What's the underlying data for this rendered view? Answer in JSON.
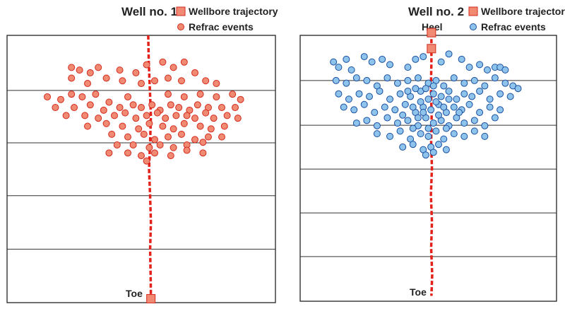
{
  "chart_data": [
    {
      "type": "scatter",
      "title": "Well no. 1",
      "legend": {
        "trajectory": "Wellbore trajectory",
        "events": "Refrac events",
        "placement": "top"
      },
      "labels": {
        "toe": "Toe"
      },
      "xlim": [
        0,
        100
      ],
      "ylim": [
        0,
        100
      ],
      "grid": true,
      "colors": {
        "fill": "#f08a72",
        "stroke": "#d42a1e",
        "trajectory": "#e3231b"
      },
      "trajectory": [
        [
          52.6,
          0
        ],
        [
          52.8,
          10
        ],
        [
          53.2,
          20
        ],
        [
          53.6,
          30
        ],
        [
          53.3,
          40
        ],
        [
          52.9,
          50
        ],
        [
          53.3,
          60
        ],
        [
          53.6,
          70
        ],
        [
          53.3,
          80
        ],
        [
          53.5,
          90
        ],
        [
          53.6,
          98
        ]
      ],
      "events": [
        [
          15,
          23
        ],
        [
          20,
          24
        ],
        [
          24,
          22
        ],
        [
          28,
          23
        ],
        [
          33,
          22
        ],
        [
          38,
          25
        ],
        [
          45,
          23
        ],
        [
          60,
          22
        ],
        [
          66,
          23
        ],
        [
          72,
          22
        ],
        [
          78,
          23
        ],
        [
          84,
          22
        ],
        [
          87,
          24
        ],
        [
          18,
          27
        ],
        [
          25,
          27
        ],
        [
          31,
          26
        ],
        [
          36,
          28
        ],
        [
          42,
          27
        ],
        [
          47,
          26
        ],
        [
          50,
          27
        ],
        [
          54,
          26
        ],
        [
          57,
          28
        ],
        [
          61,
          26
        ],
        [
          64,
          27
        ],
        [
          68,
          28
        ],
        [
          71,
          26
        ],
        [
          75,
          27
        ],
        [
          80,
          27
        ],
        [
          85,
          27
        ],
        [
          22,
          30
        ],
        [
          29,
          30
        ],
        [
          34,
          31
        ],
        [
          40,
          30
        ],
        [
          44,
          29
        ],
        [
          48,
          31
        ],
        [
          52,
          30
        ],
        [
          56,
          29
        ],
        [
          59,
          31
        ],
        [
          63,
          30
        ],
        [
          67,
          30
        ],
        [
          70,
          31
        ],
        [
          74,
          29
        ],
        [
          77,
          31
        ],
        [
          82,
          30
        ],
        [
          86,
          31
        ],
        [
          30,
          34
        ],
        [
          37,
          33
        ],
        [
          43,
          34
        ],
        [
          49,
          35
        ],
        [
          53,
          33
        ],
        [
          58,
          34
        ],
        [
          62,
          35
        ],
        [
          66,
          33
        ],
        [
          72,
          34
        ],
        [
          76,
          35
        ],
        [
          81,
          34
        ],
        [
          39,
          37
        ],
        [
          45,
          38
        ],
        [
          51,
          37
        ],
        [
          55,
          39
        ],
        [
          60,
          38
        ],
        [
          65,
          37
        ],
        [
          70,
          39
        ],
        [
          75,
          38
        ],
        [
          80,
          38
        ],
        [
          41,
          41
        ],
        [
          47,
          41
        ],
        [
          53,
          42
        ],
        [
          57,
          41
        ],
        [
          62,
          42
        ],
        [
          67,
          41
        ],
        [
          73,
          40
        ],
        [
          38,
          44
        ],
        [
          45,
          44
        ],
        [
          50,
          45
        ],
        [
          55,
          44
        ],
        [
          61,
          45
        ],
        [
          67,
          43
        ],
        [
          73,
          44
        ],
        [
          52,
          47
        ],
        [
          24,
          12
        ],
        [
          27,
          13
        ],
        [
          31,
          14
        ],
        [
          34,
          12
        ],
        [
          42,
          13
        ],
        [
          48,
          14
        ],
        [
          52,
          11
        ],
        [
          58,
          10
        ],
        [
          62,
          12
        ],
        [
          66,
          10
        ],
        [
          43,
          17
        ],
        [
          50,
          18
        ],
        [
          55,
          17
        ],
        [
          60,
          16
        ],
        [
          65,
          17
        ],
        [
          37,
          16
        ],
        [
          30,
          18
        ],
        [
          24,
          16
        ],
        [
          70,
          14
        ],
        [
          74,
          17
        ],
        [
          78,
          18
        ]
      ]
    },
    {
      "type": "scatter",
      "title": "Well no. 2",
      "legend": {
        "trajectory": "Wellbore trajectory",
        "events": "Refrac events",
        "placement": "top"
      },
      "labels": {
        "heel": "Heel",
        "toe": "Toe"
      },
      "xlim": [
        0,
        100
      ],
      "ylim": [
        0,
        100
      ],
      "grid": true,
      "colors": {
        "fill": "#8ec4ec",
        "stroke": "#1a4fa0",
        "trajectory": "#e3231b"
      },
      "trajectory": [
        [
          51.2,
          -1
        ],
        [
          51.2,
          10
        ],
        [
          51.0,
          20
        ],
        [
          51.3,
          30
        ],
        [
          51.1,
          40
        ],
        [
          51.4,
          50
        ],
        [
          51.0,
          60
        ],
        [
          51.4,
          70
        ],
        [
          51.1,
          80
        ],
        [
          51.5,
          90
        ],
        [
          51.2,
          98
        ]
      ],
      "events": [
        [
          13,
          10
        ],
        [
          15,
          12
        ],
        [
          18,
          9
        ],
        [
          20,
          13
        ],
        [
          25,
          8
        ],
        [
          28,
          10
        ],
        [
          32,
          9
        ],
        [
          35,
          11
        ],
        [
          42,
          12
        ],
        [
          45,
          9
        ],
        [
          48,
          8
        ],
        [
          55,
          10
        ],
        [
          58,
          7
        ],
        [
          63,
          9
        ],
        [
          66,
          12
        ],
        [
          70,
          11
        ],
        [
          73,
          13
        ],
        [
          76,
          12
        ],
        [
          78,
          12
        ],
        [
          80,
          13
        ],
        [
          14,
          17
        ],
        [
          18,
          18
        ],
        [
          22,
          16
        ],
        [
          26,
          17
        ],
        [
          30,
          19
        ],
        [
          34,
          16
        ],
        [
          38,
          18
        ],
        [
          42,
          17
        ],
        [
          46,
          16
        ],
        [
          50,
          18
        ],
        [
          53,
          17
        ],
        [
          56,
          19
        ],
        [
          60,
          16
        ],
        [
          64,
          18
        ],
        [
          68,
          17
        ],
        [
          72,
          19
        ],
        [
          76,
          16
        ],
        [
          80,
          18
        ],
        [
          83,
          19
        ],
        [
          85,
          20
        ],
        [
          15,
          22
        ],
        [
          19,
          24
        ],
        [
          23,
          22
        ],
        [
          27,
          23
        ],
        [
          31,
          21
        ],
        [
          35,
          24
        ],
        [
          39,
          22
        ],
        [
          43,
          23
        ],
        [
          47,
          21
        ],
        [
          50,
          24
        ],
        [
          52,
          22
        ],
        [
          55,
          23
        ],
        [
          58,
          21
        ],
        [
          61,
          24
        ],
        [
          64,
          22
        ],
        [
          67,
          23
        ],
        [
          70,
          21
        ],
        [
          74,
          24
        ],
        [
          78,
          22
        ],
        [
          82,
          23
        ],
        [
          17,
          27
        ],
        [
          21,
          28
        ],
        [
          25,
          26
        ],
        [
          29,
          29
        ],
        [
          33,
          27
        ],
        [
          37,
          28
        ],
        [
          41,
          26
        ],
        [
          45,
          29
        ],
        [
          48,
          27
        ],
        [
          51,
          28
        ],
        [
          54,
          26
        ],
        [
          57,
          29
        ],
        [
          60,
          27
        ],
        [
          63,
          28
        ],
        [
          66,
          26
        ],
        [
          70,
          29
        ],
        [
          74,
          27
        ],
        [
          78,
          28
        ],
        [
          22,
          33
        ],
        [
          26,
          32
        ],
        [
          30,
          34
        ],
        [
          34,
          31
        ],
        [
          38,
          33
        ],
        [
          42,
          32
        ],
        [
          46,
          34
        ],
        [
          49,
          31
        ],
        [
          52,
          33
        ],
        [
          55,
          32
        ],
        [
          58,
          34
        ],
        [
          61,
          31
        ],
        [
          64,
          33
        ],
        [
          68,
          32
        ],
        [
          72,
          34
        ],
        [
          76,
          31
        ],
        [
          30,
          37
        ],
        [
          35,
          38
        ],
        [
          39,
          36
        ],
        [
          43,
          39
        ],
        [
          47,
          37
        ],
        [
          50,
          38
        ],
        [
          53,
          36
        ],
        [
          56,
          39
        ],
        [
          60,
          37
        ],
        [
          64,
          38
        ],
        [
          68,
          36
        ],
        [
          72,
          38
        ],
        [
          40,
          42
        ],
        [
          44,
          41
        ],
        [
          48,
          43
        ],
        [
          51,
          42
        ],
        [
          54,
          41
        ],
        [
          57,
          43
        ],
        [
          49,
          45
        ],
        [
          52,
          44
        ],
        [
          45,
          20
        ],
        [
          47,
          25
        ],
        [
          53,
          25
        ],
        [
          49,
          20
        ],
        [
          44,
          27
        ],
        [
          56,
          27
        ],
        [
          46,
          31
        ],
        [
          54,
          30
        ],
        [
          50,
          35
        ],
        [
          48,
          29
        ],
        [
          52,
          19
        ],
        [
          42,
          21
        ],
        [
          58,
          24
        ],
        [
          40,
          30
        ],
        [
          62,
          29
        ],
        [
          57,
          35
        ],
        [
          44,
          35
        ]
      ]
    }
  ]
}
